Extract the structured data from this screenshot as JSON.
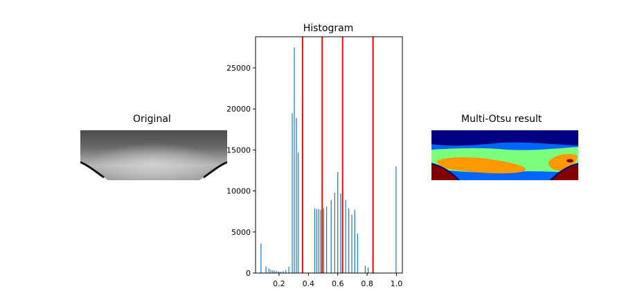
{
  "figure": {
    "left_title": "Original",
    "right_title": "Multi-Otsu result"
  },
  "chart_data": {
    "type": "bar",
    "title": "Histogram",
    "xlabel": "",
    "ylabel": "",
    "xlim": [
      0.04,
      1.04
    ],
    "ylim": [
      0,
      28800
    ],
    "xticks": [
      0.2,
      0.4,
      0.6,
      0.8,
      1.0
    ],
    "xtick_labels": [
      "0.2",
      "0.4",
      "0.6",
      "0.8",
      "1.0"
    ],
    "yticks": [
      0,
      5000,
      10000,
      15000,
      20000,
      25000
    ],
    "ytick_labels": [
      "0",
      "5000",
      "10000",
      "15000",
      "20000",
      "25000"
    ],
    "bar_color": "#1f77b4",
    "threshold_color": "#ff0000",
    "grid": false,
    "x": [
      0.077,
      0.111,
      0.131,
      0.144,
      0.158,
      0.171,
      0.185,
      0.199,
      0.212,
      0.229,
      0.246,
      0.267,
      0.29,
      0.304,
      0.318,
      0.331,
      0.443,
      0.457,
      0.47,
      0.484,
      0.504,
      0.524,
      0.555,
      0.579,
      0.6,
      0.62,
      0.654,
      0.675,
      0.696,
      0.716,
      0.735,
      0.787,
      0.807,
      0.997
    ],
    "values": [
      3600,
      800,
      550,
      400,
      350,
      300,
      250,
      200,
      150,
      250,
      350,
      750,
      19500,
      27500,
      18900,
      14700,
      7900,
      7800,
      7800,
      7700,
      7900,
      8100,
      8900,
      9800,
      12300,
      9700,
      8900,
      7900,
      7100,
      7700,
      4800,
      900,
      700,
      13000
    ],
    "thresholds": [
      0.36,
      0.494,
      0.633,
      0.84
    ]
  }
}
